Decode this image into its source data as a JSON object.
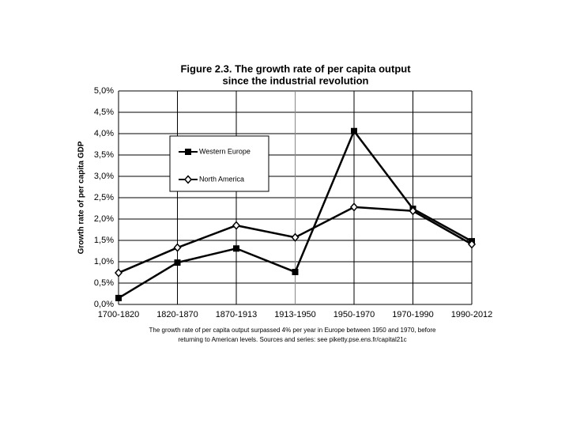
{
  "chart_data": {
    "type": "line",
    "title": [
      "Figure 2.3. The growth rate of per capita output",
      "since the industrial revolution"
    ],
    "y_label": "Growth rate of per capita GDP",
    "caption": [
      "The growth rate of per capita output surpassed 4% per year in Europe between 1950 and 1970, before",
      "returning to American levels. Sources and series: see piketty.pse.ens.fr/capital21c"
    ],
    "categories": [
      "1700-1820",
      "1820-1870",
      "1870-1913",
      "1913-1950",
      "1950-1970",
      "1970-1990",
      "1990-2012"
    ],
    "series": [
      {
        "name": "Western Europe",
        "color": "#000000",
        "marker": "square",
        "values": [
          0.15,
          0.98,
          1.31,
          0.76,
          4.06,
          2.24,
          1.48
        ]
      },
      {
        "name": "North America",
        "color": "#000000",
        "marker": "diamond",
        "values": [
          0.74,
          1.33,
          1.85,
          1.57,
          2.28,
          2.19,
          1.41
        ]
      }
    ],
    "ylim": [
      0,
      5
    ],
    "yticks": [
      {
        "value": 0,
        "label": "0,0%"
      },
      {
        "value": 0.5,
        "label": "0,5%"
      },
      {
        "value": 1,
        "label": "1,0%"
      },
      {
        "value": 1.5,
        "label": "1,5%"
      },
      {
        "value": 2,
        "label": "2,0%"
      },
      {
        "value": 2.5,
        "label": "2,5%"
      },
      {
        "value": 3,
        "label": "3,0%"
      },
      {
        "value": 3.5,
        "label": "3,5%"
      },
      {
        "value": 4,
        "label": "4,0%"
      },
      {
        "value": 4.5,
        "label": "4,5%"
      },
      {
        "value": 5,
        "label": "5,0%"
      }
    ],
    "grid": true
  }
}
